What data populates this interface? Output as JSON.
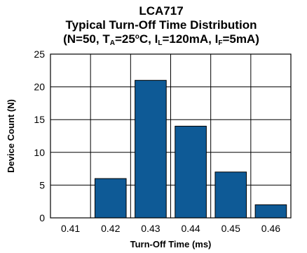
{
  "title": {
    "line1": "LCA717",
    "line2": "Typical Turn-Off Time Distribution",
    "line3_parts": [
      "(N=50, T",
      "A",
      "=25",
      "o",
      "C, I",
      "L",
      "=120mA, I",
      "F",
      "=5mA)"
    ]
  },
  "colors": {
    "bar": "#0e5a96",
    "grid": "#000000"
  },
  "chart_data": {
    "type": "bar",
    "categories": [
      "0.41",
      "0.42",
      "0.43",
      "0.44",
      "0.45",
      "0.46"
    ],
    "values": [
      0,
      6,
      21,
      14,
      7,
      2
    ],
    "xlabel": "Turn-Off Time (ms)",
    "ylabel": "Device Count (N)",
    "ylim": [
      0,
      25
    ],
    "yticks": [
      "0",
      "5",
      "10",
      "15",
      "20",
      "25"
    ],
    "grid": true
  }
}
